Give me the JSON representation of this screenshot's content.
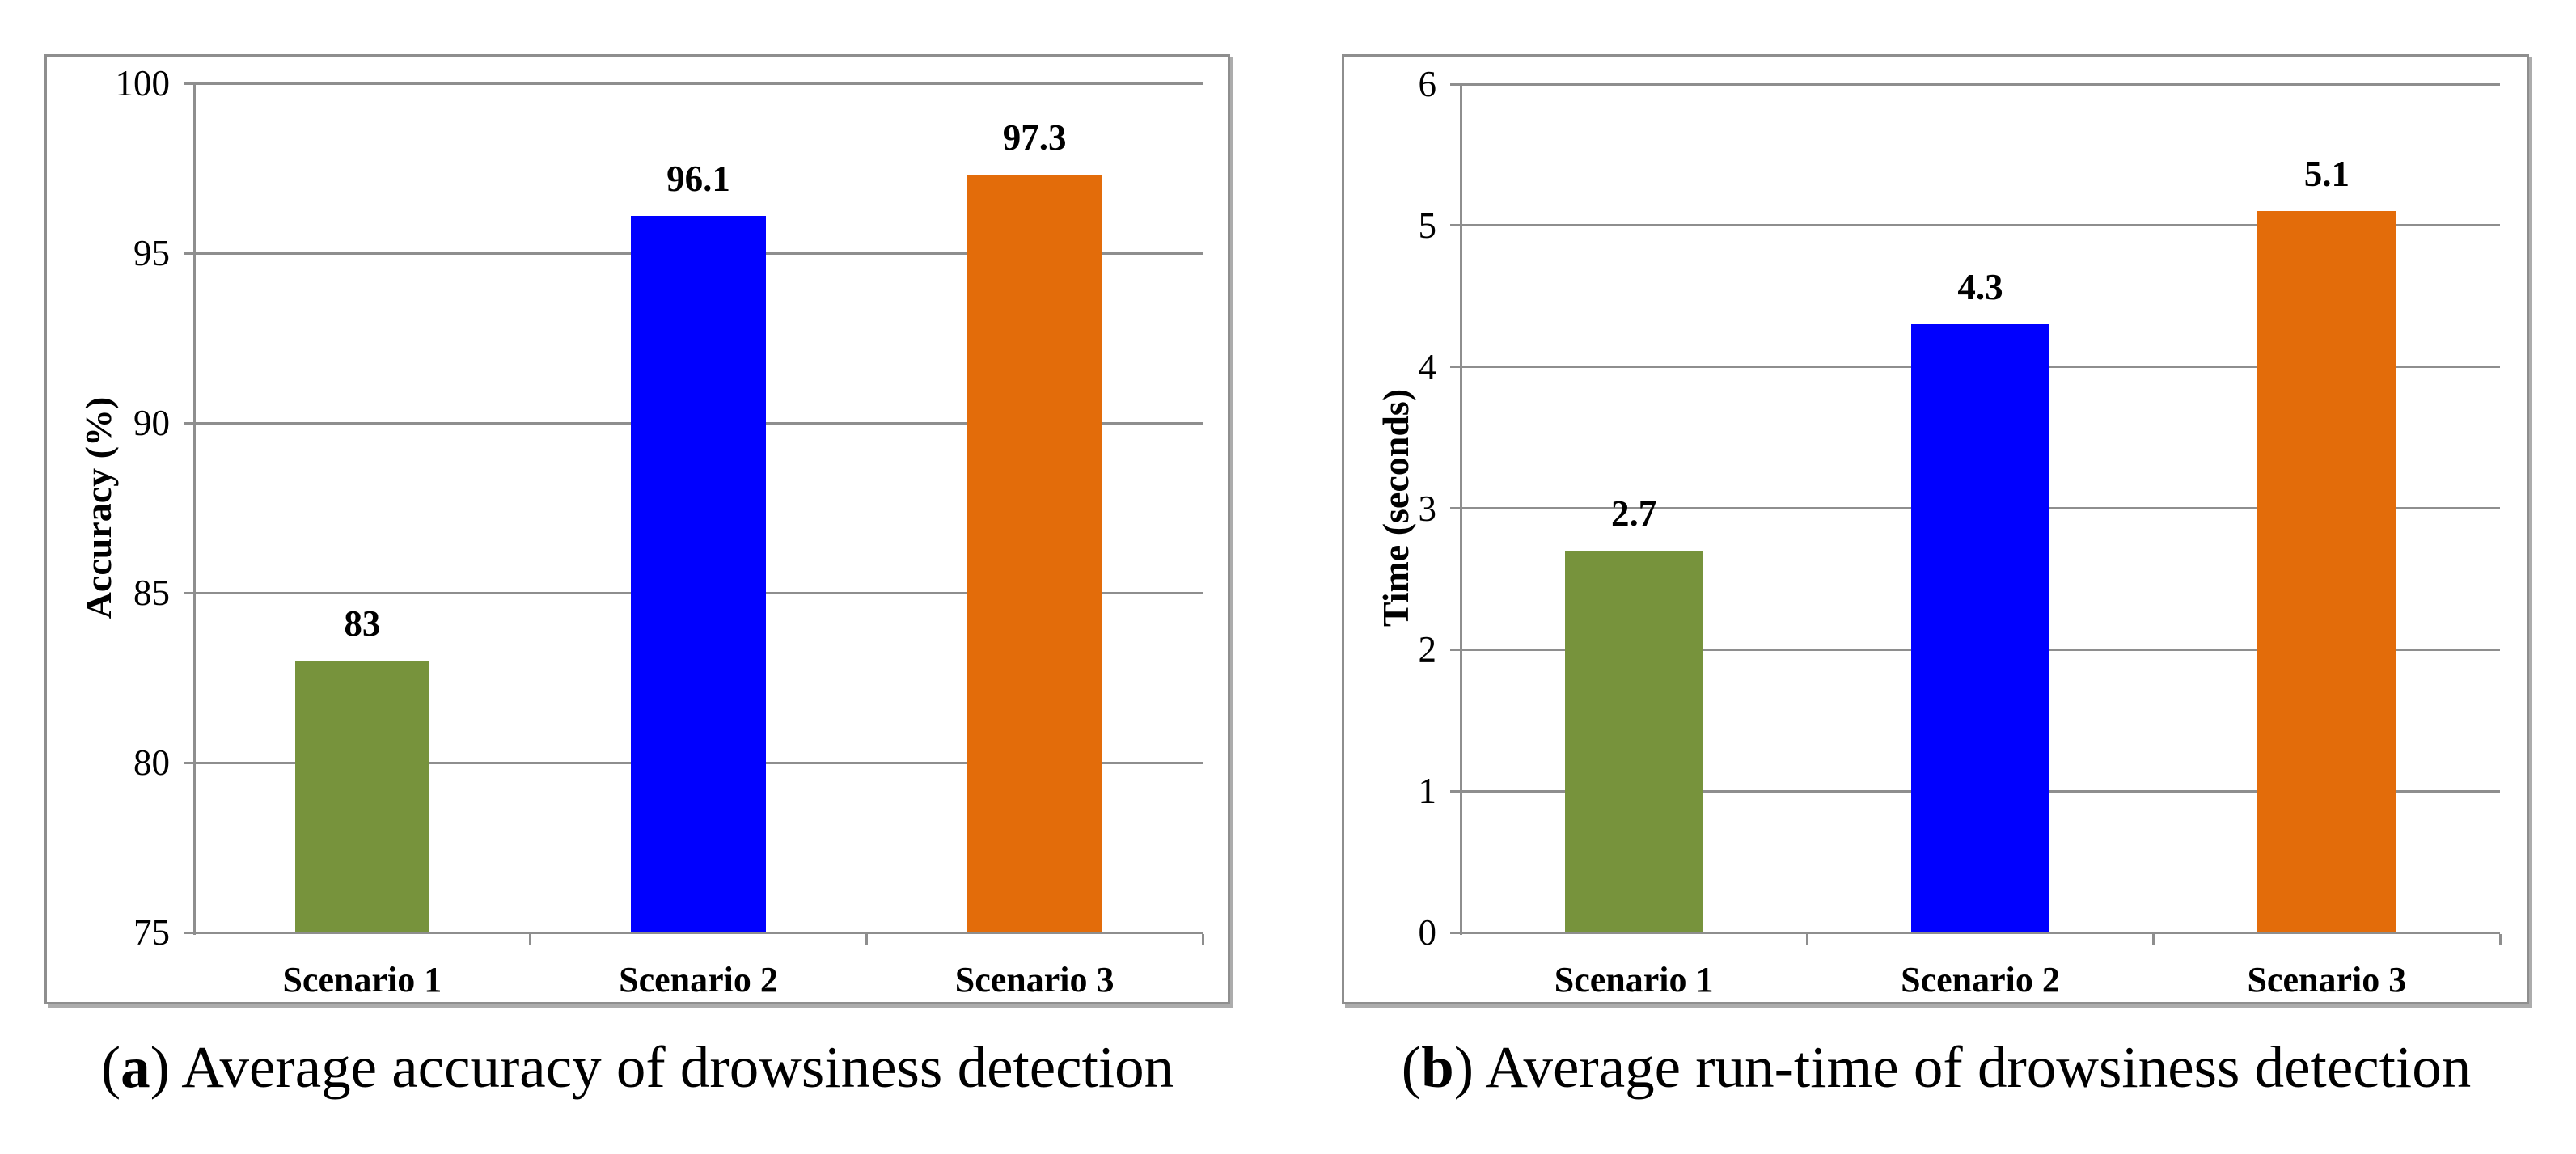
{
  "figure": {
    "type": "two-panel-bar-figure",
    "background": "#ffffff",
    "panels": [
      {
        "id": "a",
        "caption": {
          "open": "(",
          "letter": "a",
          "close": ") ",
          "text": "Average accuracy of drowsiness detection"
        }
      },
      {
        "id": "b",
        "caption": {
          "open": "(",
          "letter": "b",
          "close": ") ",
          "text": "Average run-time of drowsiness detection"
        }
      }
    ]
  },
  "style": {
    "grid_color": "#8E8E8E",
    "axis_color": "#8E8E8E",
    "panel_border_color": "#8E8E8E",
    "text_color": "#000000",
    "bar_colors": [
      "#77933C",
      "#0000FF",
      "#E36C0A"
    ]
  },
  "chart_data": [
    {
      "type": "bar",
      "title": "",
      "categories": [
        "Scenario 1",
        "Scenario 2",
        "Scenario 3"
      ],
      "values": [
        83,
        96.1,
        97.3
      ],
      "value_labels": [
        "83",
        "96.1",
        "97.3"
      ],
      "bar_colors": [
        "#77933C",
        "#0000FF",
        "#E36C0A"
      ],
      "xlabel": "",
      "ylabel": "Accuracy (%)",
      "ylim": [
        75,
        100
      ],
      "yticks": [
        75,
        80,
        85,
        90,
        95,
        100
      ],
      "grid": true,
      "legend": "none"
    },
    {
      "type": "bar",
      "title": "",
      "categories": [
        "Scenario 1",
        "Scenario 2",
        "Scenario 3"
      ],
      "values": [
        2.7,
        4.3,
        5.1
      ],
      "value_labels": [
        "2.7",
        "4.3",
        "5.1"
      ],
      "bar_colors": [
        "#77933C",
        "#0000FF",
        "#E36C0A"
      ],
      "xlabel": "",
      "ylabel": "Time (seconds)",
      "ylim": [
        0,
        6
      ],
      "yticks": [
        0,
        1,
        2,
        3,
        4,
        5,
        6
      ],
      "grid": true,
      "legend": "none"
    }
  ]
}
